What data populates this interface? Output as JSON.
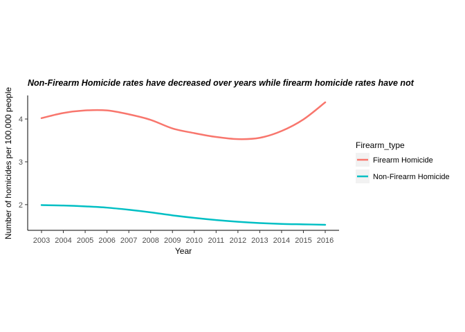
{
  "chart_data": {
    "type": "line",
    "title": "Non-Firearm Homicide rates have decreased over years while firearm homicide rates have not",
    "xlabel": "Year",
    "ylabel": "Number of homicides per 100,000 people",
    "x": [
      2003,
      2004,
      2005,
      2006,
      2007,
      2008,
      2009,
      2010,
      2011,
      2012,
      2013,
      2014,
      2015,
      2016
    ],
    "xticks": [
      "2003",
      "2004",
      "2005",
      "2006",
      "2007",
      "2008",
      "2009",
      "2010",
      "2011",
      "2012",
      "2013",
      "2014",
      "2015",
      "2016"
    ],
    "yticks": [
      "2",
      "3",
      "4"
    ],
    "ylim": [
      1.4,
      4.55
    ],
    "grid": false,
    "legend_title": "Firearm_type",
    "legend_position": "right",
    "series": [
      {
        "name": "Firearm Homicide",
        "color": "#F8766D",
        "values": [
          4.02,
          4.14,
          4.2,
          4.2,
          4.11,
          3.98,
          3.78,
          3.67,
          3.58,
          3.53,
          3.56,
          3.72,
          3.99,
          4.39
        ]
      },
      {
        "name": "Non-Firearm Homicide",
        "color": "#00BFC4",
        "values": [
          1.99,
          1.98,
          1.96,
          1.93,
          1.88,
          1.82,
          1.75,
          1.69,
          1.64,
          1.6,
          1.57,
          1.55,
          1.54,
          1.53
        ]
      }
    ]
  }
}
